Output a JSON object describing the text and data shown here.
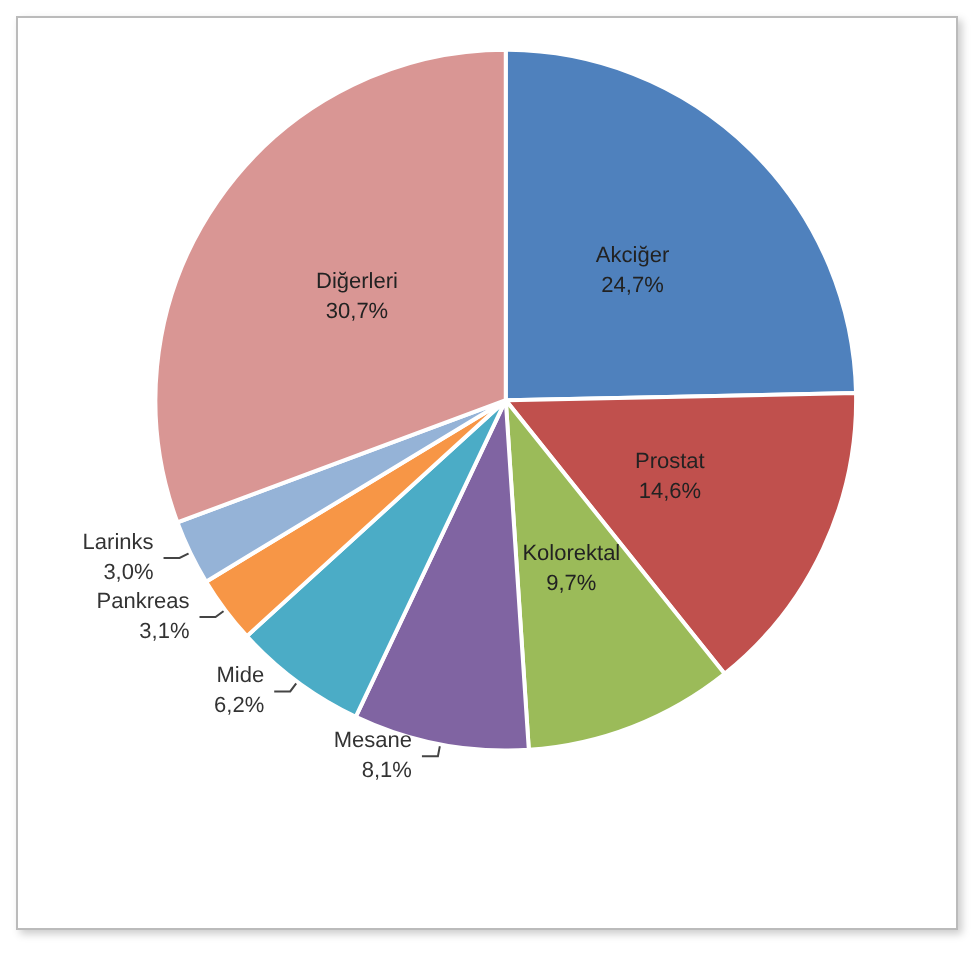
{
  "chart_data": {
    "type": "pie",
    "categories": [
      "Akciğer",
      "Prostat",
      "Kolorektal",
      "Mesane",
      "Mide",
      "Pankreas",
      "Larinks",
      "Diğerleri"
    ],
    "values": [
      24.7,
      14.6,
      9.7,
      8.1,
      6.2,
      3.1,
      3.0,
      30.7
    ],
    "colors": [
      "#4f81bd",
      "#c0504d",
      "#9bbb59",
      "#8064a2",
      "#4bacc6",
      "#f79646",
      "#95b3d7",
      "#d99694"
    ],
    "value_labels": [
      "24,7%",
      "14,6%",
      "9,7%",
      "8,1%",
      "6,2%",
      "3,1%",
      "3,0%",
      "30,7%"
    ],
    "legend": false
  }
}
